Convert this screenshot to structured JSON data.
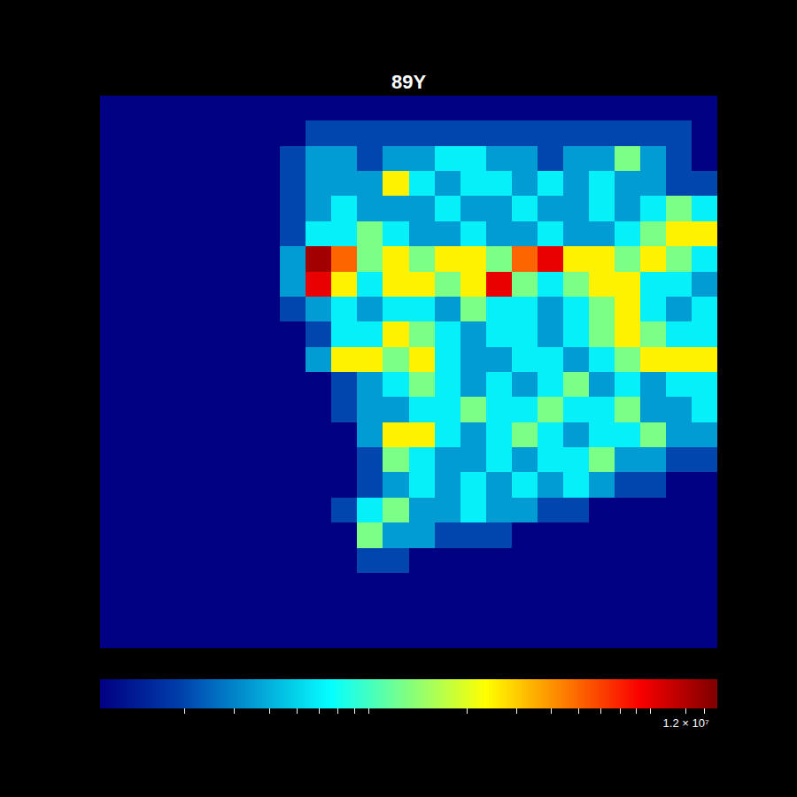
{
  "chart_data": {
    "type": "heatmap",
    "title": "89Y",
    "log": true,
    "tick_labels": false,
    "colorbar_range": [
      100000,
      15500000
    ],
    "colorbar_ticks": [
      {
        "value": 12000000,
        "label": "1.2 × 10⁷"
      }
    ],
    "colorbar_minor_ticks": [
      200000,
      300000,
      400000,
      500000,
      600000,
      700000,
      800000,
      900000,
      2000000,
      3000000,
      4000000,
      5000000,
      6000000,
      7000000,
      8000000,
      9000000,
      14000000
    ],
    "cells": [
      [
        100000,
        100000,
        100000,
        100000,
        100000,
        100000,
        100000,
        100000,
        100000,
        100000,
        100000,
        100000,
        100000,
        100000,
        100000,
        100000,
        100000,
        100000,
        100000,
        100000,
        100000,
        100000,
        100000,
        100000
      ],
      [
        100000,
        100000,
        100000,
        100000,
        100000,
        100000,
        100000,
        100000,
        200000,
        200000,
        200000,
        200000,
        200000,
        200000,
        200000,
        200000,
        200000,
        200000,
        200000,
        200000,
        200000,
        200000,
        200000,
        100000
      ],
      [
        100000,
        100000,
        100000,
        100000,
        100000,
        100000,
        100000,
        200000,
        350000,
        350000,
        200000,
        350000,
        350000,
        600000,
        600000,
        350000,
        350000,
        200000,
        350000,
        350000,
        1200000,
        350000,
        200000,
        100000
      ],
      [
        100000,
        100000,
        100000,
        100000,
        100000,
        100000,
        100000,
        200000,
        350000,
        350000,
        350000,
        2500000,
        600000,
        350000,
        600000,
        600000,
        350000,
        600000,
        350000,
        600000,
        350000,
        350000,
        200000,
        200000
      ],
      [
        100000,
        100000,
        100000,
        100000,
        100000,
        100000,
        100000,
        200000,
        350000,
        600000,
        350000,
        350000,
        350000,
        600000,
        350000,
        350000,
        600000,
        350000,
        350000,
        600000,
        350000,
        600000,
        1200000,
        600000
      ],
      [
        100000,
        100000,
        100000,
        100000,
        100000,
        100000,
        100000,
        200000,
        600000,
        600000,
        1200000,
        600000,
        350000,
        350000,
        600000,
        350000,
        350000,
        600000,
        350000,
        350000,
        600000,
        1200000,
        2500000,
        2500000
      ],
      [
        100000,
        100000,
        100000,
        100000,
        100000,
        100000,
        100000,
        350000,
        13000000,
        5000000,
        1200000,
        2500000,
        1200000,
        2500000,
        2500000,
        1200000,
        5000000,
        9000000,
        2500000,
        2500000,
        1200000,
        2500000,
        1200000,
        600000
      ],
      [
        100000,
        100000,
        100000,
        100000,
        100000,
        100000,
        100000,
        350000,
        9000000,
        2500000,
        600000,
        2500000,
        2500000,
        1200000,
        2500000,
        9000000,
        1200000,
        600000,
        1200000,
        2500000,
        2500000,
        600000,
        600000,
        350000
      ],
      [
        100000,
        100000,
        100000,
        100000,
        100000,
        100000,
        100000,
        200000,
        350000,
        600000,
        350000,
        600000,
        600000,
        350000,
        1200000,
        600000,
        600000,
        350000,
        600000,
        1200000,
        2500000,
        600000,
        350000,
        600000
      ],
      [
        100000,
        100000,
        100000,
        100000,
        100000,
        100000,
        100000,
        100000,
        200000,
        600000,
        600000,
        2500000,
        1200000,
        600000,
        350000,
        600000,
        600000,
        350000,
        600000,
        1200000,
        2500000,
        1200000,
        600000,
        600000
      ],
      [
        100000,
        100000,
        100000,
        100000,
        100000,
        100000,
        100000,
        100000,
        350000,
        2500000,
        2500000,
        1200000,
        2500000,
        600000,
        350000,
        350000,
        600000,
        600000,
        350000,
        600000,
        1200000,
        2500000,
        2500000,
        2500000
      ],
      [
        100000,
        100000,
        100000,
        100000,
        100000,
        100000,
        100000,
        100000,
        100000,
        200000,
        350000,
        600000,
        1200000,
        600000,
        350000,
        600000,
        350000,
        600000,
        1200000,
        350000,
        600000,
        350000,
        600000,
        600000
      ],
      [
        100000,
        100000,
        100000,
        100000,
        100000,
        100000,
        100000,
        100000,
        100000,
        200000,
        350000,
        350000,
        600000,
        600000,
        1200000,
        600000,
        600000,
        1200000,
        600000,
        600000,
        1200000,
        350000,
        350000,
        600000
      ],
      [
        100000,
        100000,
        100000,
        100000,
        100000,
        100000,
        100000,
        100000,
        100000,
        100000,
        350000,
        2500000,
        2500000,
        600000,
        350000,
        600000,
        1200000,
        600000,
        350000,
        600000,
        600000,
        1200000,
        350000,
        350000
      ],
      [
        100000,
        100000,
        100000,
        100000,
        100000,
        100000,
        100000,
        100000,
        100000,
        100000,
        200000,
        1200000,
        600000,
        350000,
        350000,
        600000,
        350000,
        600000,
        600000,
        1200000,
        350000,
        350000,
        200000,
        200000
      ],
      [
        100000,
        100000,
        100000,
        100000,
        100000,
        100000,
        100000,
        100000,
        100000,
        100000,
        200000,
        350000,
        600000,
        350000,
        600000,
        350000,
        600000,
        350000,
        600000,
        350000,
        200000,
        200000,
        100000,
        100000
      ],
      [
        100000,
        100000,
        100000,
        100000,
        100000,
        100000,
        100000,
        100000,
        100000,
        200000,
        600000,
        1200000,
        350000,
        350000,
        600000,
        350000,
        350000,
        200000,
        200000,
        100000,
        100000,
        100000,
        100000,
        100000
      ],
      [
        100000,
        100000,
        100000,
        100000,
        100000,
        100000,
        100000,
        100000,
        100000,
        100000,
        1200000,
        350000,
        350000,
        200000,
        200000,
        200000,
        100000,
        100000,
        100000,
        100000,
        100000,
        100000,
        100000,
        100000
      ],
      [
        100000,
        100000,
        100000,
        100000,
        100000,
        100000,
        100000,
        100000,
        100000,
        100000,
        200000,
        200000,
        100000,
        100000,
        100000,
        100000,
        100000,
        100000,
        100000,
        100000,
        100000,
        100000,
        100000,
        100000
      ],
      [
        100000,
        100000,
        100000,
        100000,
        100000,
        100000,
        100000,
        100000,
        100000,
        100000,
        100000,
        100000,
        100000,
        100000,
        100000,
        100000,
        100000,
        100000,
        100000,
        100000,
        100000,
        100000,
        100000,
        100000
      ],
      [
        100000,
        100000,
        100000,
        100000,
        100000,
        100000,
        100000,
        100000,
        100000,
        100000,
        100000,
        100000,
        100000,
        100000,
        100000,
        100000,
        100000,
        100000,
        100000,
        100000,
        100000,
        100000,
        100000,
        100000
      ],
      [
        100000,
        100000,
        100000,
        100000,
        100000,
        100000,
        100000,
        100000,
        100000,
        100000,
        100000,
        100000,
        100000,
        100000,
        100000,
        100000,
        100000,
        100000,
        100000,
        100000,
        100000,
        100000,
        100000,
        100000
      ]
    ]
  }
}
